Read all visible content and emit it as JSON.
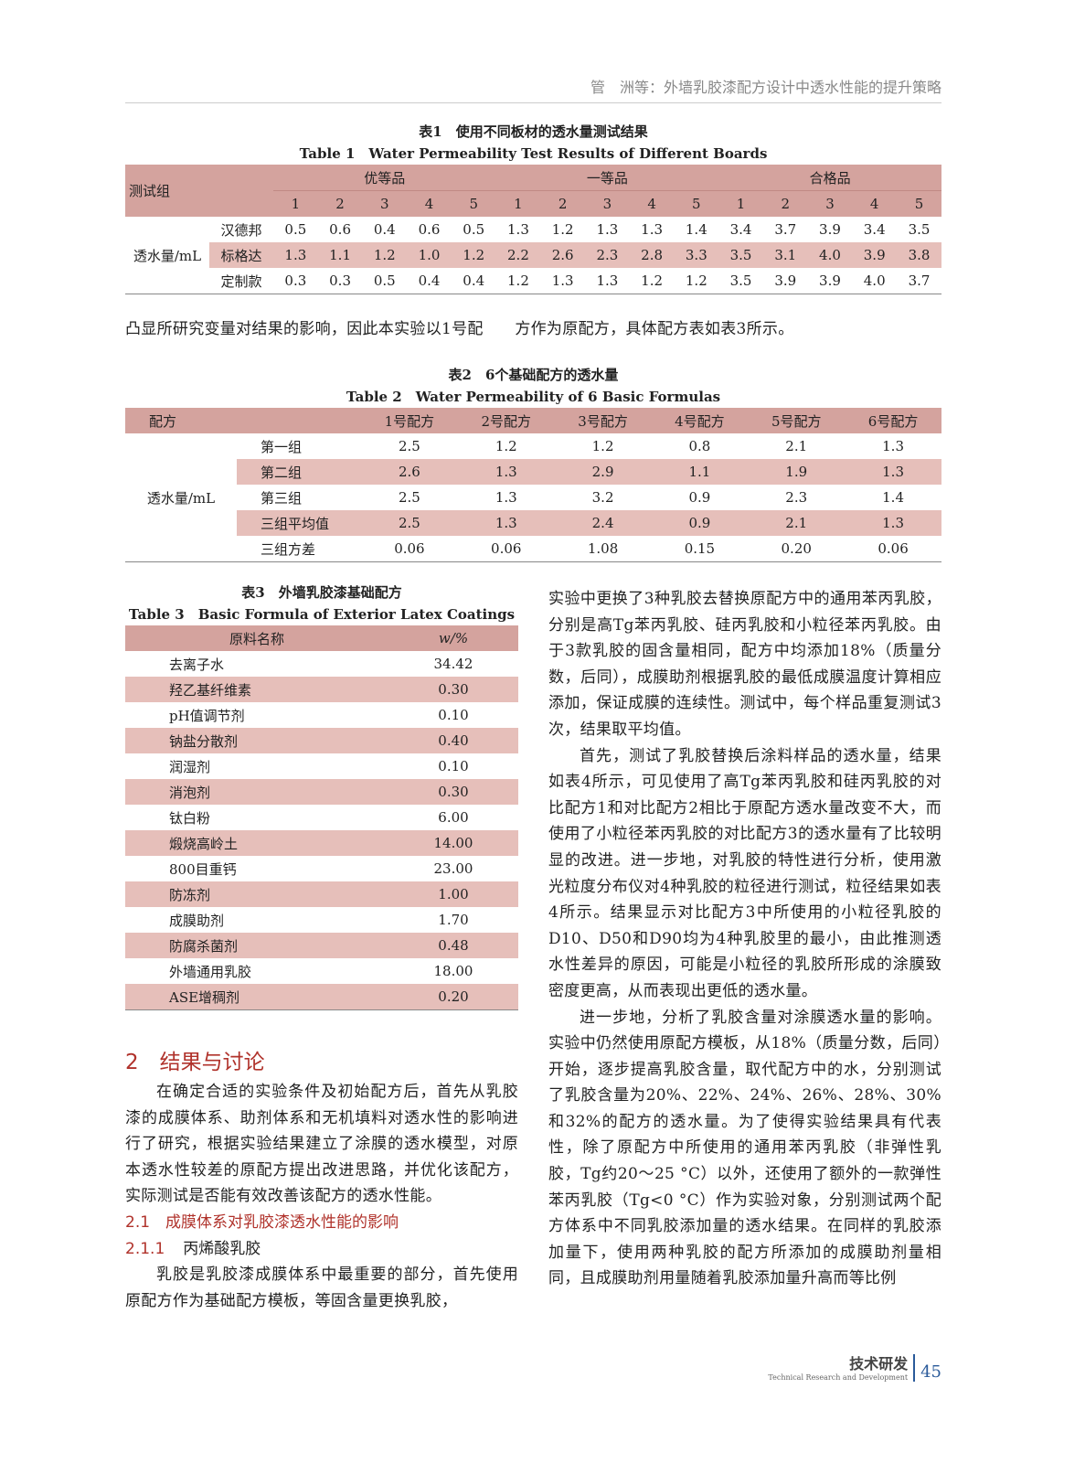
{
  "running_head": "管　洲等：外墙乳胶漆配方设计中透水性能的提升策略",
  "table1": {
    "caption_cn": "表1　使用不同板材的透水量测试结果",
    "caption_en": "Table 1　Water Permeability Test Results of Different Boards",
    "group_label": "测试组",
    "grades": [
      "优等品",
      "一等品",
      "合格品"
    ],
    "cols": [
      "1",
      "2",
      "3",
      "4",
      "5"
    ],
    "row_label": "透水量/mL",
    "rows": [
      {
        "name": "汉德邦",
        "values": [
          "0.5",
          "0.6",
          "0.4",
          "0.6",
          "0.5",
          "1.3",
          "1.2",
          "1.3",
          "1.3",
          "1.4",
          "3.4",
          "3.7",
          "3.9",
          "3.4",
          "3.5"
        ]
      },
      {
        "name": "标格达",
        "values": [
          "1.3",
          "1.1",
          "1.2",
          "1.0",
          "1.2",
          "2.2",
          "2.6",
          "2.3",
          "2.8",
          "3.3",
          "3.5",
          "3.1",
          "4.0",
          "3.9",
          "3.8"
        ]
      },
      {
        "name": "定制款",
        "values": [
          "0.3",
          "0.3",
          "0.5",
          "0.4",
          "0.4",
          "1.2",
          "1.3",
          "1.3",
          "1.2",
          "1.2",
          "3.5",
          "3.9",
          "3.9",
          "4.0",
          "3.7"
        ]
      }
    ]
  },
  "para_full": "凸显所研究变量对结果的影响，因此本实验以1号配　　方作为原配方，具体配方表如表3所示。",
  "table2": {
    "caption_cn": "表2　6个基础配方的透水量",
    "caption_en": "Table 2　Water Permeability of 6 Basic Formulas",
    "header": [
      "配方",
      "1号配方",
      "2号配方",
      "3号配方",
      "4号配方",
      "5号配方",
      "6号配方"
    ],
    "row_label": "透水量/mL",
    "rows": [
      {
        "name": "第一组",
        "values": [
          "2.5",
          "1.2",
          "1.2",
          "0.8",
          "2.1",
          "1.3"
        ]
      },
      {
        "name": "第二组",
        "values": [
          "2.6",
          "1.3",
          "2.9",
          "1.1",
          "1.9",
          "1.3"
        ]
      },
      {
        "name": "第三组",
        "values": [
          "2.5",
          "1.3",
          "3.2",
          "0.9",
          "2.3",
          "1.4"
        ]
      },
      {
        "name": "三组平均值",
        "values": [
          "2.5",
          "1.3",
          "2.4",
          "0.9",
          "2.1",
          "1.3"
        ]
      },
      {
        "name": "三组方差",
        "values": [
          "0.06",
          "0.06",
          "1.08",
          "0.15",
          "0.20",
          "0.06"
        ]
      }
    ]
  },
  "table3": {
    "caption_cn": "表3　外墙乳胶漆基础配方",
    "caption_en": "Table 3　Basic Formula of Exterior Latex Coatings",
    "header": [
      "原料名称",
      "w/%"
    ],
    "rows": [
      [
        "去离子水",
        "34.42"
      ],
      [
        "羟乙基纤维素",
        "0.30"
      ],
      [
        "pH值调节剂",
        "0.10"
      ],
      [
        "钠盐分散剂",
        "0.40"
      ],
      [
        "润湿剂",
        "0.10"
      ],
      [
        "消泡剂",
        "0.30"
      ],
      [
        "钛白粉",
        "6.00"
      ],
      [
        "煅烧高岭土",
        "14.00"
      ],
      [
        "800目重钙",
        "23.00"
      ],
      [
        "防冻剂",
        "1.00"
      ],
      [
        "成膜助剂",
        "1.70"
      ],
      [
        "防腐杀菌剂",
        "0.48"
      ],
      [
        "外墙通用乳胶",
        "18.00"
      ],
      [
        "ASE增稠剂",
        "0.20"
      ]
    ]
  },
  "section2": {
    "num": "2",
    "title": "结果与讨论"
  },
  "left_para1": "在确定合适的实验条件及初始配方后，首先从乳胶漆的成膜体系、助剂体系和无机填料对透水性的影响进行了研究，根据实验结果建立了涂膜的透水模型，对原本透水性较差的原配方提出改进思路，并优化该配方，实际测试是否能有效改善该配方的透水性能。",
  "section21": {
    "num": "2.1",
    "title": "成膜体系对乳胶漆透水性能的影响"
  },
  "section211": {
    "num": "2.1.1",
    "title": "丙烯酸乳胶"
  },
  "left_para2": "乳胶是乳胶漆成膜体系中最重要的部分，首先使用原配方作为基础配方模板，等固含量更换乳胶，",
  "right_para1": "实验中更换了3种乳胶去替换原配方中的通用苯丙乳胶，分别是高Tg苯丙乳胶、硅丙乳胶和小粒径苯丙乳胶。由于3款乳胶的固含量相同，配方中均添加18%（质量分数，后同），成膜助剂根据乳胶的最低成膜温度计算相应添加，保证成膜的连续性。测试中，每个样品重复测试3次，结果取平均值。",
  "right_para2": "首先，测试了乳胶替换后涂料样品的透水量，结果如表4所示，可见使用了高Tg苯丙乳胶和硅丙乳胶的对比配方1和对比配方2相比于原配方透水量改变不大，而使用了小粒径苯丙乳胶的对比配方3的透水量有了比较明显的改进。进一步地，对乳胶的特性进行分析，使用激光粒度分布仪对4种乳胶的粒径进行测试，粒径结果如表4所示。结果显示对比配方3中所使用的小粒径乳胶的D10、D50和D90均为4种乳胶里的最小，由此推测透水性差异的原因，可能是小粒径的乳胶所形成的涂膜致密度更高，从而表现出更低的透水量。",
  "right_para3": "进一步地，分析了乳胶含量对涂膜透水量的影响。实验中仍然使用原配方模板，从18%（质量分数，后同）开始，逐步提高乳胶含量，取代配方中的水，分别测试了乳胶含量为20%、22%、24%、26%、28%、30%和32%的配方的透水量。为了使得实验结果具有代表性，除了原配方中所使用的通用苯丙乳胶（非弹性乳胶，Tg约20～25 °C）以外，还使用了额外的一款弹性苯丙乳胶（Tg<0 °C）作为实验对象，分别测试两个配方体系中不同乳胶添加量的透水结果。在同样的乳胶添加量下，使用两种乳胶的配方所添加的成膜助剂量相同，且成膜助剂用量随着乳胶添加量升高而等比例",
  "footer": {
    "section_cn": "技术研发",
    "section_en": "Technical Research and Development",
    "page": "45"
  },
  "colors": {
    "header_fill": "#d4a39e",
    "stripe_fill": "#e6bfba",
    "heading": "#b0322b"
  }
}
